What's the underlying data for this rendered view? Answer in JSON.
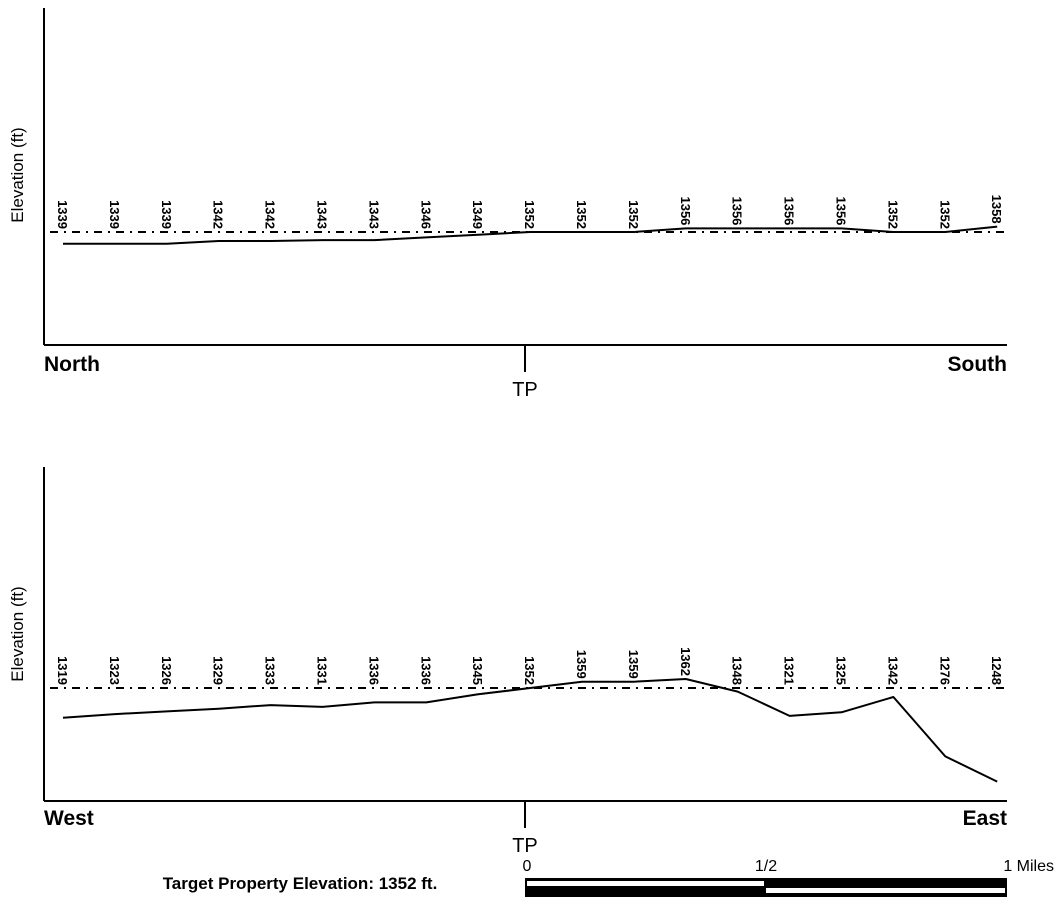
{
  "chart_data": [
    {
      "type": "line",
      "ylabel": "Elevation (ft)",
      "x_start_label": "North",
      "x_end_label": "South",
      "center_label": "TP",
      "reference_elevation": 1352,
      "values": [
        1339,
        1339,
        1339,
        1342,
        1342,
        1343,
        1343,
        1346,
        1349,
        1352,
        1352,
        1352,
        1356,
        1356,
        1356,
        1356,
        1352,
        1352,
        1358
      ]
    },
    {
      "type": "line",
      "ylabel": "Elevation (ft)",
      "x_start_label": "West",
      "x_end_label": "East",
      "center_label": "TP",
      "reference_elevation": 1352,
      "values": [
        1319,
        1323,
        1326,
        1329,
        1333,
        1331,
        1336,
        1336,
        1345,
        1352,
        1359,
        1359,
        1362,
        1348,
        1321,
        1325,
        1342,
        1276,
        1248
      ]
    }
  ],
  "footer": {
    "target_elevation_text": "Target Property Elevation: 1352 ft."
  },
  "scale_bar": {
    "labels": [
      "0",
      "1/2",
      "1 Miles"
    ]
  }
}
